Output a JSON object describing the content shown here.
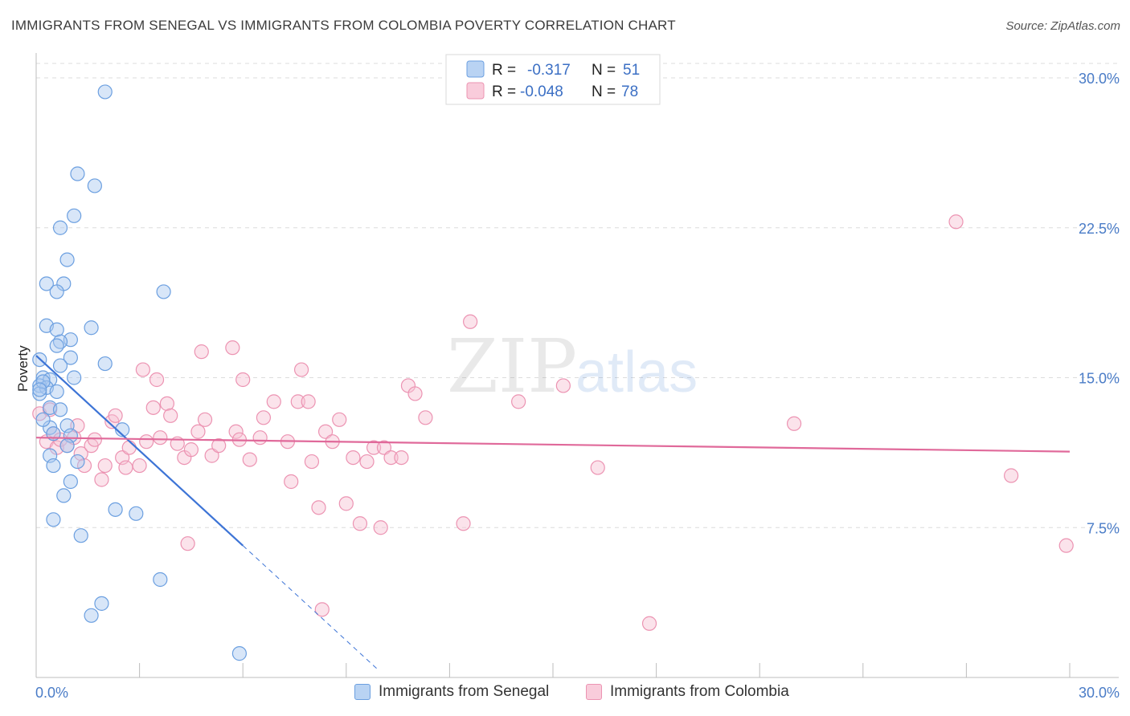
{
  "title": "IMMIGRANTS FROM SENEGAL VS IMMIGRANTS FROM COLOMBIA POVERTY CORRELATION CHART",
  "source": "Source: ZipAtlas.com",
  "watermark": {
    "zip": "ZIP",
    "atlas": "atlas"
  },
  "chart_data": {
    "type": "scatter",
    "title": "IMMIGRANTS FROM SENEGAL VS IMMIGRANTS FROM COLOMBIA POVERTY CORRELATION CHART",
    "xlabel": "",
    "ylabel": "Poverty",
    "xlim": [
      0,
      30
    ],
    "ylim": [
      0,
      30
    ],
    "x_tick_labels": [
      "0.0%",
      "30.0%"
    ],
    "y_ticks": [
      {
        "value": 7.5,
        "label": "7.5%"
      },
      {
        "value": 15.0,
        "label": "15.0%"
      },
      {
        "value": 22.5,
        "label": "22.5%"
      },
      {
        "value": 30.0,
        "label": "30.0%"
      }
    ],
    "grid": true,
    "legend_position": "top-center",
    "legend": [
      {
        "r_label": "R =",
        "r_value": "-0.317",
        "n_label": "N =",
        "n_value": "51"
      },
      {
        "r_label": "R =",
        "r_value": "-0.048",
        "n_label": "N =",
        "n_value": "78"
      }
    ],
    "series": [
      {
        "name": "Immigrants from Senegal",
        "fill": "#a8c8f0",
        "stroke": "#6b9fe0",
        "line_color": "#3d74d6",
        "trend": {
          "x0": 0.0,
          "y0": 16.1,
          "x1": 6.0,
          "y1": 6.6,
          "dash_to_x": 9.9
        },
        "points": [
          [
            2.0,
            29.3
          ],
          [
            1.2,
            25.2
          ],
          [
            1.7,
            24.6
          ],
          [
            1.1,
            23.1
          ],
          [
            0.7,
            22.5
          ],
          [
            0.9,
            20.9
          ],
          [
            0.3,
            19.7
          ],
          [
            0.8,
            19.7
          ],
          [
            0.6,
            19.3
          ],
          [
            3.7,
            19.3
          ],
          [
            0.3,
            17.6
          ],
          [
            1.6,
            17.5
          ],
          [
            0.6,
            17.4
          ],
          [
            1.0,
            16.9
          ],
          [
            0.7,
            16.8
          ],
          [
            0.6,
            16.6
          ],
          [
            1.0,
            16.0
          ],
          [
            0.1,
            15.9
          ],
          [
            2.0,
            15.7
          ],
          [
            0.7,
            15.6
          ],
          [
            0.2,
            15.0
          ],
          [
            1.1,
            15.0
          ],
          [
            0.4,
            14.9
          ],
          [
            0.1,
            14.6
          ],
          [
            0.3,
            14.5
          ],
          [
            0.1,
            14.2
          ],
          [
            0.6,
            14.3
          ],
          [
            0.4,
            13.5
          ],
          [
            0.7,
            13.4
          ],
          [
            0.9,
            12.6
          ],
          [
            0.4,
            12.5
          ],
          [
            2.5,
            12.4
          ],
          [
            0.5,
            12.2
          ],
          [
            1.0,
            12.1
          ],
          [
            0.9,
            11.6
          ],
          [
            0.4,
            11.1
          ],
          [
            1.2,
            10.8
          ],
          [
            0.5,
            10.6
          ],
          [
            1.0,
            9.8
          ],
          [
            0.8,
            9.1
          ],
          [
            2.3,
            8.4
          ],
          [
            2.9,
            8.2
          ],
          [
            0.5,
            7.9
          ],
          [
            1.3,
            7.1
          ],
          [
            3.6,
            4.9
          ],
          [
            1.9,
            3.7
          ],
          [
            1.6,
            3.1
          ],
          [
            5.9,
            1.2
          ],
          [
            0.2,
            14.8
          ],
          [
            0.1,
            14.4
          ],
          [
            0.2,
            12.9
          ]
        ]
      },
      {
        "name": "Immigrants from Colombia",
        "fill": "#f7c1d3",
        "stroke": "#ec93b2",
        "line_color": "#e0699a",
        "trend": {
          "x0": 0.0,
          "y0": 12.0,
          "x1": 30.0,
          "y1": 11.3
        },
        "points": [
          [
            0.1,
            13.2
          ],
          [
            0.3,
            11.8
          ],
          [
            0.4,
            13.4
          ],
          [
            0.5,
            12.2
          ],
          [
            0.6,
            11.5
          ],
          [
            0.7,
            11.9
          ],
          [
            0.9,
            11.6
          ],
          [
            1.1,
            12.0
          ],
          [
            1.2,
            12.6
          ],
          [
            1.3,
            11.2
          ],
          [
            1.4,
            10.6
          ],
          [
            1.6,
            11.6
          ],
          [
            1.7,
            11.9
          ],
          [
            1.9,
            9.9
          ],
          [
            2.0,
            10.6
          ],
          [
            2.2,
            12.8
          ],
          [
            2.3,
            13.1
          ],
          [
            2.5,
            11.0
          ],
          [
            2.6,
            10.5
          ],
          [
            2.7,
            11.5
          ],
          [
            3.0,
            10.6
          ],
          [
            3.1,
            15.4
          ],
          [
            3.2,
            11.8
          ],
          [
            3.4,
            13.5
          ],
          [
            3.5,
            14.9
          ],
          [
            3.6,
            12.0
          ],
          [
            3.8,
            13.7
          ],
          [
            3.9,
            13.1
          ],
          [
            4.1,
            11.7
          ],
          [
            4.3,
            11.0
          ],
          [
            4.5,
            11.4
          ],
          [
            4.7,
            12.3
          ],
          [
            4.8,
            16.3
          ],
          [
            4.9,
            12.9
          ],
          [
            5.1,
            11.1
          ],
          [
            5.3,
            11.6
          ],
          [
            5.7,
            16.5
          ],
          [
            5.8,
            12.3
          ],
          [
            5.9,
            11.9
          ],
          [
            6.0,
            14.9
          ],
          [
            6.2,
            10.9
          ],
          [
            6.5,
            12.0
          ],
          [
            6.6,
            13.0
          ],
          [
            6.9,
            13.8
          ],
          [
            7.3,
            11.8
          ],
          [
            7.4,
            9.8
          ],
          [
            7.6,
            13.8
          ],
          [
            7.7,
            15.4
          ],
          [
            7.9,
            13.8
          ],
          [
            8.0,
            10.8
          ],
          [
            8.2,
            8.5
          ],
          [
            8.4,
            12.3
          ],
          [
            8.6,
            11.8
          ],
          [
            8.8,
            12.9
          ],
          [
            9.0,
            8.7
          ],
          [
            9.2,
            11.0
          ],
          [
            9.4,
            7.7
          ],
          [
            9.6,
            10.8
          ],
          [
            9.8,
            11.5
          ],
          [
            10.1,
            11.5
          ],
          [
            10.3,
            11.0
          ],
          [
            10.6,
            11.0
          ],
          [
            10.8,
            14.6
          ],
          [
            11.0,
            14.2
          ],
          [
            11.3,
            13.0
          ],
          [
            12.4,
            7.7
          ],
          [
            12.6,
            17.8
          ],
          [
            14.0,
            13.8
          ],
          [
            15.3,
            14.6
          ],
          [
            16.3,
            10.5
          ],
          [
            17.8,
            2.7
          ],
          [
            22.0,
            12.7
          ],
          [
            26.7,
            22.8
          ],
          [
            28.3,
            10.1
          ],
          [
            29.9,
            6.6
          ],
          [
            4.4,
            6.7
          ],
          [
            8.3,
            3.4
          ],
          [
            10.0,
            7.5
          ]
        ]
      }
    ]
  }
}
